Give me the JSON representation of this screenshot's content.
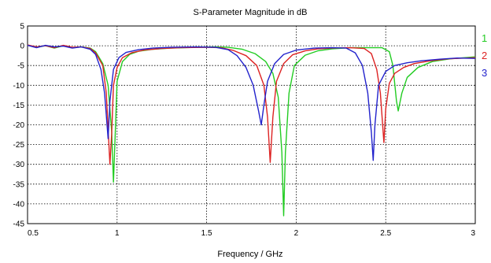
{
  "chart_data": {
    "type": "line",
    "title": "S-Parameter Magnitude in dB",
    "xlabel": "Frequency / GHz",
    "ylabel": "",
    "xlim": [
      0.5,
      3
    ],
    "ylim": [
      -45,
      5
    ],
    "xticks": [
      "0.5",
      "1",
      "1.5",
      "2",
      "2.5",
      "3"
    ],
    "yticks": [
      "5",
      "0",
      "-5",
      "-10",
      "-15",
      "-20",
      "-25",
      "-30",
      "-35",
      "-40",
      "-45"
    ],
    "grid": "dotted",
    "legend_position": "right",
    "series": [
      {
        "name": "1",
        "color": "#22cc22",
        "points": [
          [
            0.5,
            0.2
          ],
          [
            0.55,
            -0.4
          ],
          [
            0.6,
            0
          ],
          [
            0.65,
            -0.6
          ],
          [
            0.7,
            0
          ],
          [
            0.75,
            -0.5
          ],
          [
            0.8,
            -0.3
          ],
          [
            0.85,
            -0.6
          ],
          [
            0.88,
            -1.5
          ],
          [
            0.92,
            -4.5
          ],
          [
            0.95,
            -10
          ],
          [
            0.97,
            -22
          ],
          [
            0.98,
            -34.5
          ],
          [
            0.99,
            -22
          ],
          [
            1.0,
            -9
          ],
          [
            1.03,
            -4
          ],
          [
            1.07,
            -2.2
          ],
          [
            1.12,
            -1.4
          ],
          [
            1.2,
            -0.9
          ],
          [
            1.3,
            -0.6
          ],
          [
            1.45,
            -0.4
          ],
          [
            1.55,
            -0.3
          ],
          [
            1.62,
            -0.4
          ],
          [
            1.7,
            -0.9
          ],
          [
            1.77,
            -2
          ],
          [
            1.83,
            -4
          ],
          [
            1.87,
            -7
          ],
          [
            1.9,
            -13
          ],
          [
            1.92,
            -27
          ],
          [
            1.93,
            -43
          ],
          [
            1.94,
            -27
          ],
          [
            1.96,
            -12
          ],
          [
            1.99,
            -5
          ],
          [
            2.05,
            -2.4
          ],
          [
            2.12,
            -1.3
          ],
          [
            2.2,
            -0.8
          ],
          [
            2.3,
            -0.5
          ],
          [
            2.4,
            -0.5
          ],
          [
            2.48,
            -0.5
          ],
          [
            2.52,
            -1.5
          ],
          [
            2.54,
            -5
          ],
          [
            2.56,
            -14
          ],
          [
            2.57,
            -16.5
          ],
          [
            2.59,
            -12
          ],
          [
            2.62,
            -8
          ],
          [
            2.68,
            -5.5
          ],
          [
            2.76,
            -4
          ],
          [
            2.86,
            -3.3
          ],
          [
            3.0,
            -2.8
          ]
        ]
      },
      {
        "name": "2",
        "color": "#dd2222",
        "points": [
          [
            0.5,
            0.2
          ],
          [
            0.55,
            -0.3
          ],
          [
            0.6,
            0
          ],
          [
            0.65,
            -0.5
          ],
          [
            0.7,
            0.1
          ],
          [
            0.75,
            -0.4
          ],
          [
            0.8,
            -0.3
          ],
          [
            0.85,
            -0.7
          ],
          [
            0.88,
            -1.8
          ],
          [
            0.92,
            -5
          ],
          [
            0.94,
            -12
          ],
          [
            0.96,
            -30
          ],
          [
            0.97,
            -22
          ],
          [
            0.98,
            -10
          ],
          [
            1.0,
            -5.5
          ],
          [
            1.03,
            -3
          ],
          [
            1.08,
            -1.8
          ],
          [
            1.15,
            -1.1
          ],
          [
            1.25,
            -0.7
          ],
          [
            1.35,
            -0.5
          ],
          [
            1.5,
            -0.4
          ],
          [
            1.58,
            -0.5
          ],
          [
            1.65,
            -1.2
          ],
          [
            1.72,
            -2.5
          ],
          [
            1.78,
            -5
          ],
          [
            1.82,
            -10
          ],
          [
            1.84,
            -18
          ],
          [
            1.855,
            -29.5
          ],
          [
            1.87,
            -18
          ],
          [
            1.89,
            -9
          ],
          [
            1.93,
            -4.5
          ],
          [
            1.98,
            -2.3
          ],
          [
            2.05,
            -1.3
          ],
          [
            2.12,
            -0.8
          ],
          [
            2.2,
            -0.6
          ],
          [
            2.3,
            -0.5
          ],
          [
            2.38,
            -0.7
          ],
          [
            2.42,
            -2
          ],
          [
            2.45,
            -6
          ],
          [
            2.47,
            -12
          ],
          [
            2.49,
            -24.5
          ],
          [
            2.5,
            -16
          ],
          [
            2.52,
            -9.5
          ],
          [
            2.55,
            -7
          ],
          [
            2.6,
            -5.5
          ],
          [
            2.66,
            -4.5
          ],
          [
            2.75,
            -3.8
          ],
          [
            2.85,
            -3.3
          ],
          [
            3.0,
            -3
          ]
        ]
      },
      {
        "name": "3",
        "color": "#2222cc",
        "points": [
          [
            0.5,
            0.1
          ],
          [
            0.55,
            -0.5
          ],
          [
            0.6,
            0.1
          ],
          [
            0.65,
            -0.3
          ],
          [
            0.7,
            -0.1
          ],
          [
            0.75,
            -0.6
          ],
          [
            0.8,
            -0.3
          ],
          [
            0.85,
            -0.9
          ],
          [
            0.88,
            -2.2
          ],
          [
            0.91,
            -6
          ],
          [
            0.93,
            -12
          ],
          [
            0.95,
            -23.5
          ],
          [
            0.96,
            -14
          ],
          [
            0.98,
            -6
          ],
          [
            1.01,
            -3
          ],
          [
            1.05,
            -1.7
          ],
          [
            1.12,
            -1
          ],
          [
            1.2,
            -0.6
          ],
          [
            1.3,
            -0.4
          ],
          [
            1.45,
            -0.3
          ],
          [
            1.55,
            -0.4
          ],
          [
            1.62,
            -1
          ],
          [
            1.67,
            -2.5
          ],
          [
            1.72,
            -5.5
          ],
          [
            1.76,
            -10
          ],
          [
            1.79,
            -16.5
          ],
          [
            1.805,
            -20
          ],
          [
            1.82,
            -15
          ],
          [
            1.84,
            -9
          ],
          [
            1.88,
            -4.5
          ],
          [
            1.93,
            -2.2
          ],
          [
            2.0,
            -1.1
          ],
          [
            2.1,
            -0.6
          ],
          [
            2.2,
            -0.5
          ],
          [
            2.28,
            -0.6
          ],
          [
            2.33,
            -1.8
          ],
          [
            2.37,
            -5
          ],
          [
            2.4,
            -12
          ],
          [
            2.42,
            -22
          ],
          [
            2.43,
            -29
          ],
          [
            2.44,
            -20
          ],
          [
            2.46,
            -10
          ],
          [
            2.5,
            -6.5
          ],
          [
            2.55,
            -5
          ],
          [
            2.62,
            -4.3
          ],
          [
            2.7,
            -3.8
          ],
          [
            2.8,
            -3.4
          ],
          [
            2.9,
            -3.1
          ],
          [
            3.0,
            -3.2
          ]
        ]
      }
    ]
  }
}
